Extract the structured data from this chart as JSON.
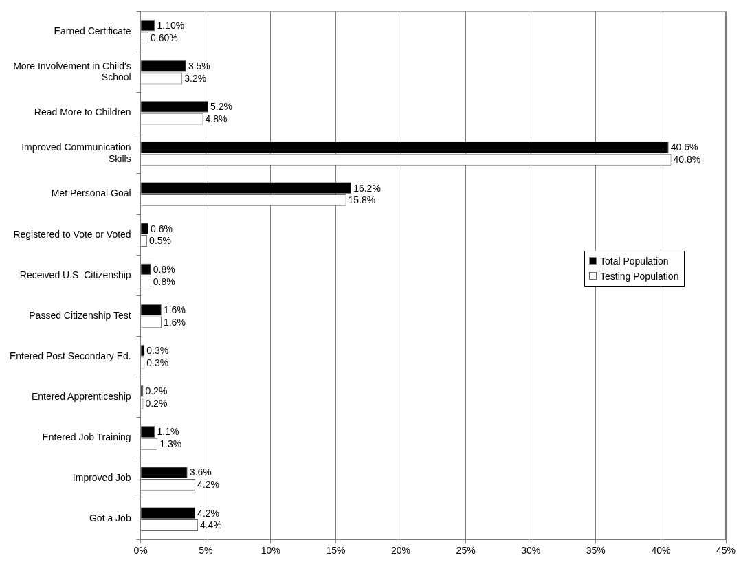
{
  "chart_data": {
    "type": "bar",
    "orientation": "horizontal",
    "categories": [
      "Earned Certificate",
      "More Involvement in Child's School",
      "Read More to Children",
      "Improved Communication Skills",
      "Met Personal Goal",
      "Registered to Vote or Voted",
      "Received U.S. Citizenship",
      "Passed Citizenship Test",
      "Entered Post Secondary Ed.",
      "Entered Apprenticeship",
      "Entered Job Training",
      "Improved Job",
      "Got a Job"
    ],
    "series": [
      {
        "name": "Total Population",
        "color": "#000000",
        "values": [
          1.1,
          3.5,
          5.2,
          40.6,
          16.2,
          0.6,
          0.8,
          1.6,
          0.3,
          0.2,
          1.1,
          3.6,
          4.2
        ],
        "value_labels": [
          "1.10%",
          "3.5%",
          "5.2%",
          "40.6%",
          "16.2%",
          "0.6%",
          "0.8%",
          "1.6%",
          "0.3%",
          "0.2%",
          "1.1%",
          "3.6%",
          "4.2%"
        ]
      },
      {
        "name": "Testing Population",
        "color": "#ffffff",
        "values": [
          0.6,
          3.2,
          4.8,
          40.8,
          15.8,
          0.5,
          0.8,
          1.6,
          0.3,
          0.2,
          1.3,
          4.2,
          4.4
        ],
        "value_labels": [
          "0.60%",
          "3.2%",
          "4.8%",
          "40.8%",
          "15.8%",
          "0.5%",
          "0.8%",
          "1.6%",
          "0.3%",
          "0.2%",
          "1.3%",
          "4.2%",
          "4.4%"
        ]
      }
    ],
    "xlim": [
      0,
      45
    ],
    "xticks": [
      {
        "value": 0,
        "label": "0%"
      },
      {
        "value": 5,
        "label": "5%"
      },
      {
        "value": 10,
        "label": "10%"
      },
      {
        "value": 15,
        "label": "15%"
      },
      {
        "value": 20,
        "label": "20%"
      },
      {
        "value": 25,
        "label": "25%"
      },
      {
        "value": 30,
        "label": "30%"
      },
      {
        "value": 35,
        "label": "35%"
      },
      {
        "value": 40,
        "label": "40%"
      },
      {
        "value": 45,
        "label": "45%"
      }
    ],
    "grid": "x",
    "legend": "right"
  }
}
